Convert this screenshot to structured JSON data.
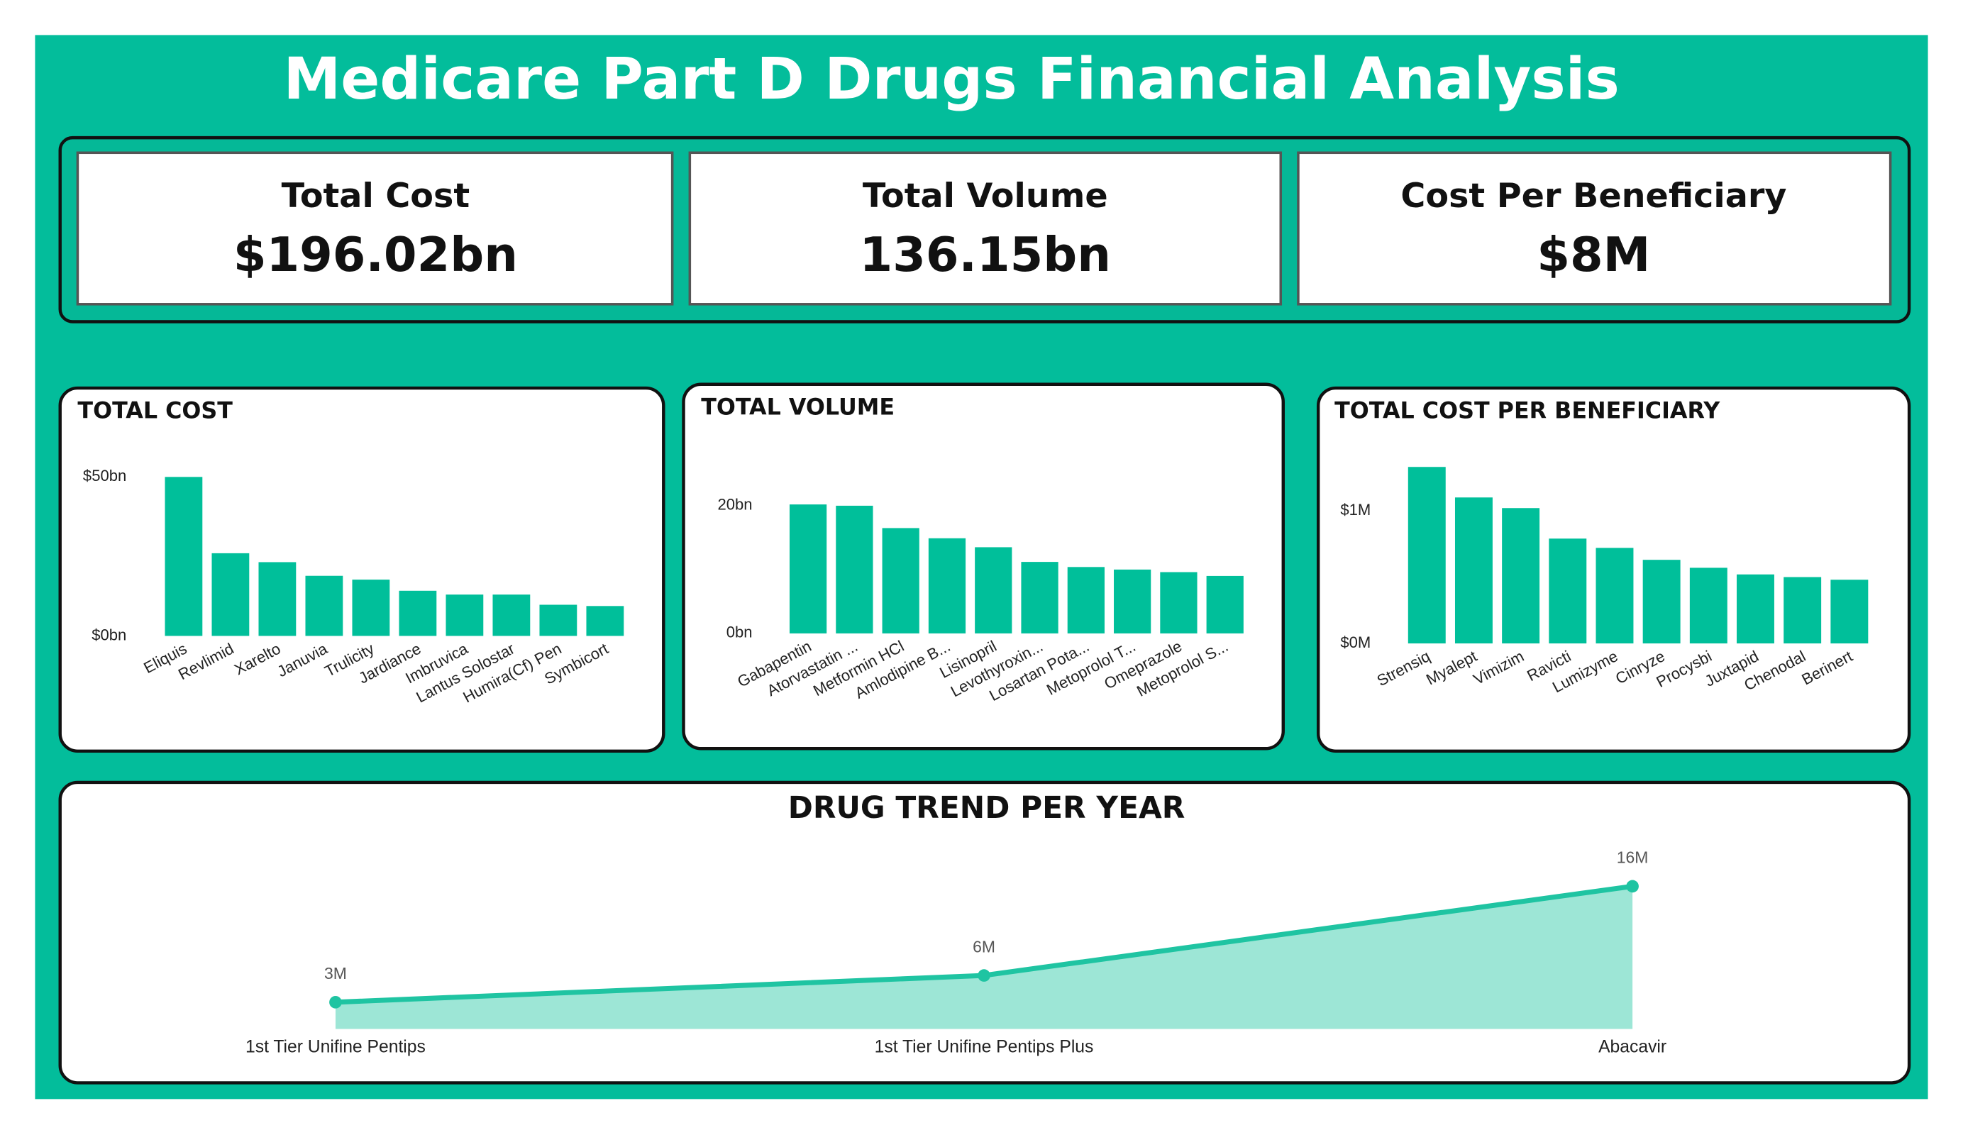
{
  "title": "Medicare Part D Drugs Financial Analysis",
  "kpis": [
    {
      "label": "Total Cost",
      "value": "$196.02bn"
    },
    {
      "label": "Total Volume",
      "value": "136.15bn"
    },
    {
      "label": "Cost Per Beneficiary",
      "value": "$8M"
    }
  ],
  "chart_data": [
    {
      "type": "bar",
      "title": "TOTAL COST",
      "color": "#00bf9a",
      "categories": [
        "Eliquis",
        "Revlimid",
        "Xarelto",
        "Januvia",
        "Trulicity",
        "Jardiance",
        "Imbruvica",
        "Lantus Solostar",
        "Humira(Cf) Pen",
        "Symbicort"
      ],
      "values": [
        50,
        26,
        23.2,
        18.9,
        17.7,
        14.2,
        13,
        13,
        9.8,
        9.4
      ],
      "ylim": [
        0,
        50
      ],
      "yticks": [
        {
          "value": 0,
          "label": "$0bn"
        },
        {
          "value": 50,
          "label": "$50bn"
        }
      ]
    },
    {
      "type": "bar",
      "title": "TOTAL VOLUME",
      "color": "#00bf9a",
      "categories": [
        "Gabapentin",
        "Atorvastatin ...",
        "Metformin HCl",
        "Amlodipine B...",
        "Lisinopril",
        "Levothyroxin...",
        "Losartan Pota...",
        "Metoprolol T...",
        "Omeprazole",
        "Metoprolol S..."
      ],
      "values": [
        20.2,
        20,
        16.5,
        14.9,
        13.5,
        11.2,
        10.4,
        10,
        9.6,
        9
      ],
      "ylim": [
        0,
        22
      ],
      "yticks": [
        {
          "value": 0,
          "label": "0bn"
        },
        {
          "value": 20,
          "label": "20bn"
        }
      ]
    },
    {
      "type": "bar",
      "title": "TOTAL COST PER BENEFICIARY",
      "color": "#00bf9a",
      "categories": [
        "Strensiq",
        "Myalept",
        "Vimizim",
        "Ravicti",
        "Lumizyme",
        "Cinryze",
        "Procysbi",
        "Juxtapid",
        "Chenodal",
        "Berinert"
      ],
      "values": [
        1.33,
        1.1,
        1.02,
        0.79,
        0.72,
        0.63,
        0.57,
        0.52,
        0.5,
        0.48
      ],
      "ylim": [
        0,
        1.4
      ],
      "yticks": [
        {
          "value": 0,
          "label": "$0M"
        },
        {
          "value": 1,
          "label": "$1M"
        }
      ]
    },
    {
      "type": "area",
      "title": "DRUG TREND PER YEAR",
      "color": "#1fc4a2",
      "fill": "#9de6d6",
      "categories": [
        "1st Tier Unifine Pentips",
        "1st Tier Unifine Pentips Plus",
        "Abacavir"
      ],
      "values": [
        3,
        6,
        16
      ],
      "value_labels": [
        "3M",
        "6M",
        "16M"
      ],
      "ylim": [
        0,
        16
      ]
    }
  ]
}
